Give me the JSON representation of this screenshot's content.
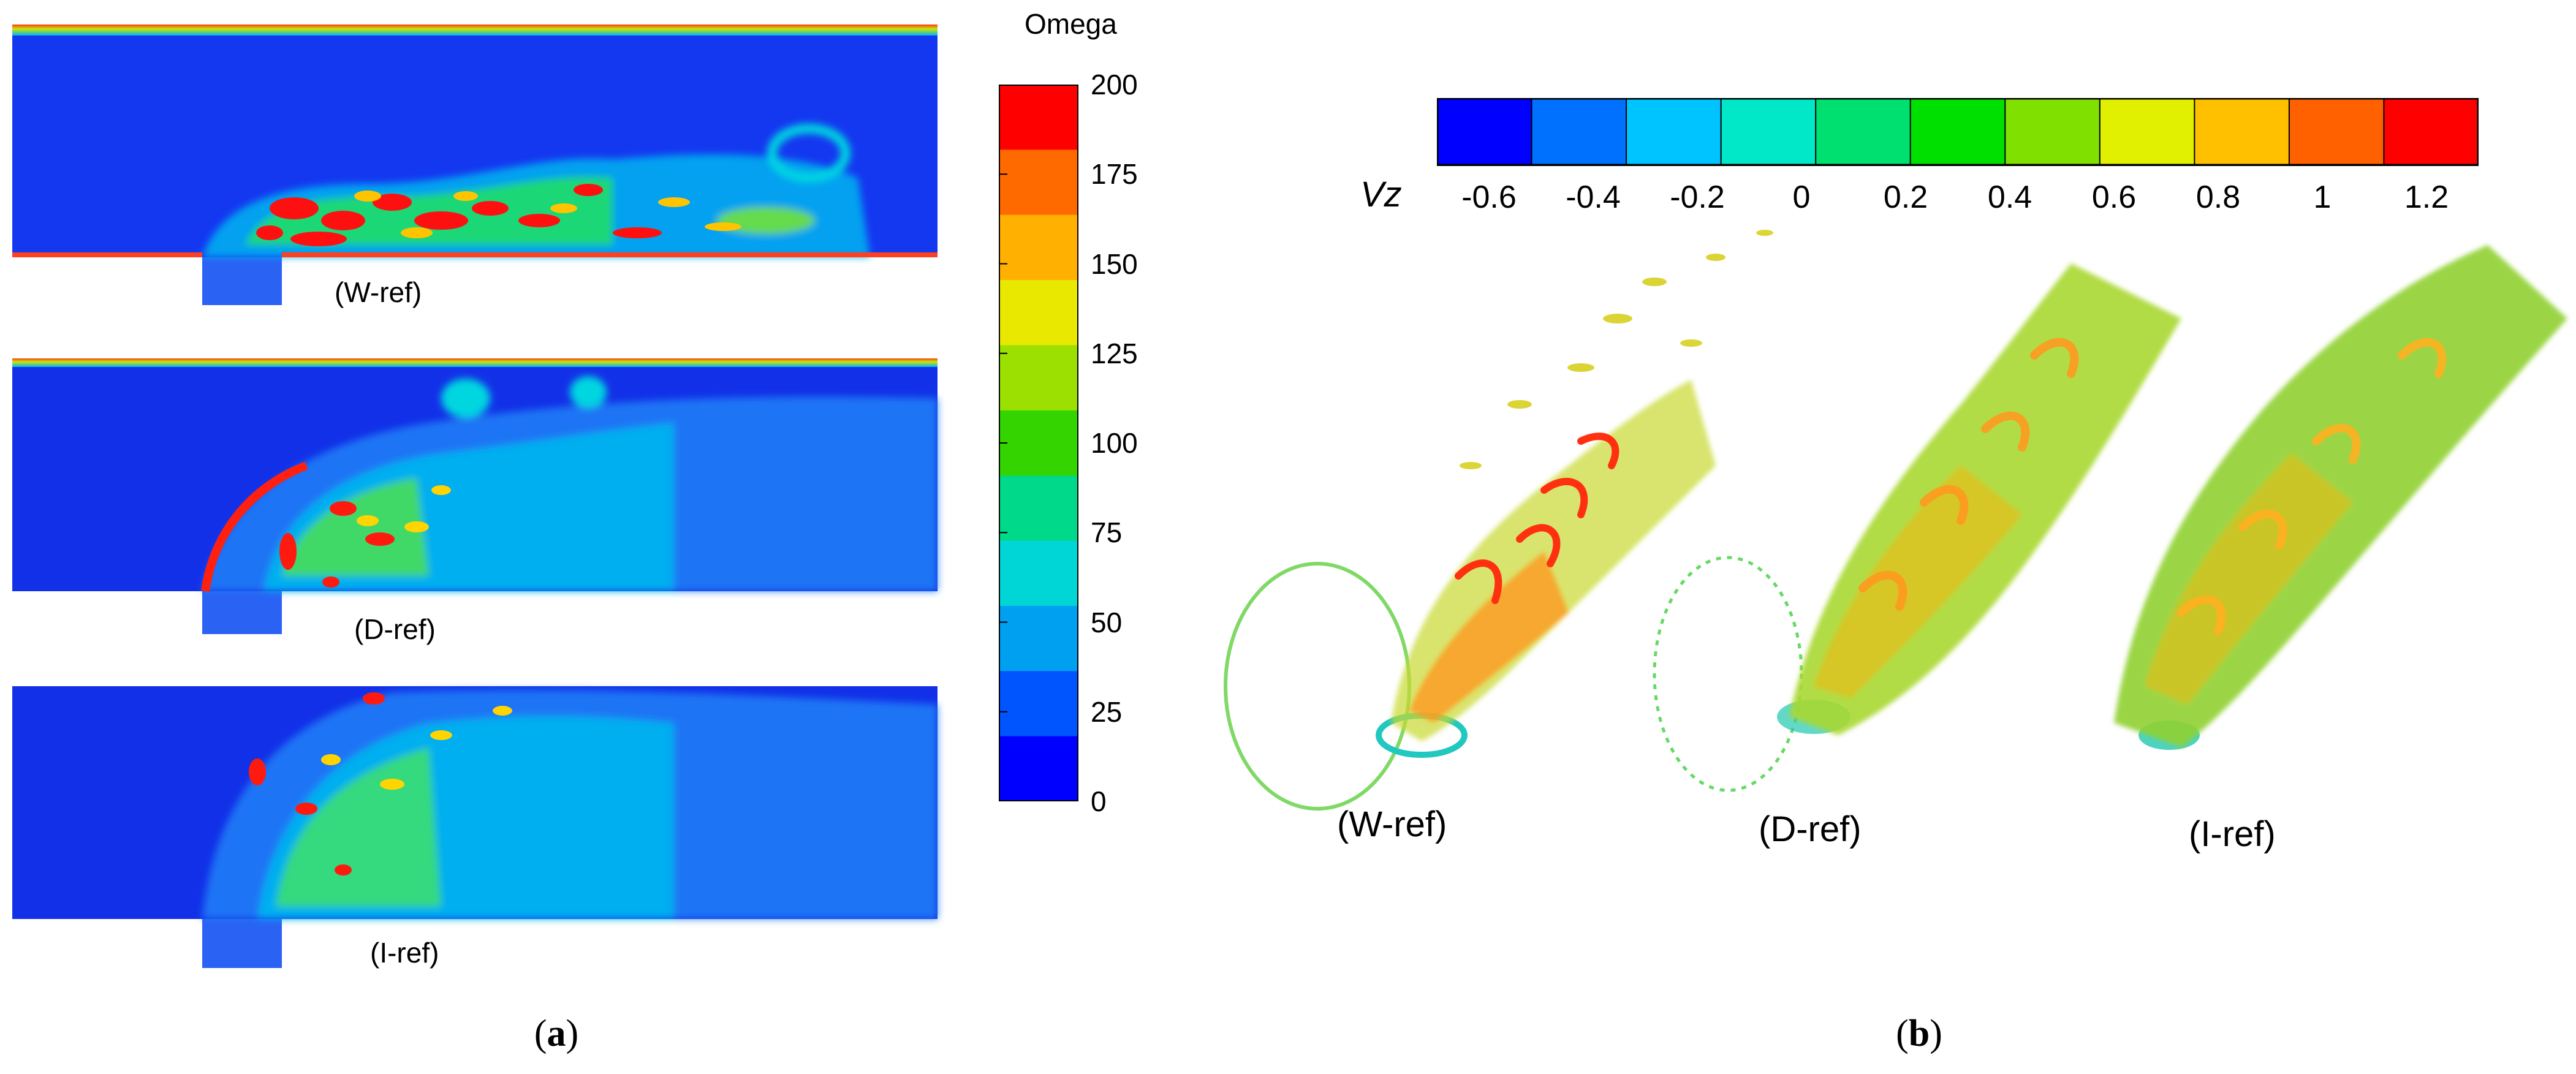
{
  "panel_a": {
    "subfigure_label": "a",
    "colorbar": {
      "title": "Omega",
      "ticks": [
        "200",
        "175",
        "150",
        "125",
        "100",
        "75",
        "50",
        "25",
        "0"
      ],
      "range": [
        0,
        200
      ],
      "colors": [
        "#ff0000",
        "#ff6a00",
        "#ffb000",
        "#e8e800",
        "#9be000",
        "#33d400",
        "#00d88a",
        "#00d6d6",
        "#00a0f0",
        "#0055ff",
        "#0000ff"
      ]
    },
    "cases": [
      "(W-ref)",
      "(D-ref)",
      "(I-ref)"
    ]
  },
  "panel_b": {
    "subfigure_label": "b",
    "colorbar": {
      "title": "Vz",
      "ticks": [
        "-0.6",
        "-0.4",
        "-0.2",
        "0",
        "0.2",
        "0.4",
        "0.6",
        "0.8",
        "1",
        "1.2"
      ],
      "range": [
        -0.7,
        1.3
      ],
      "colors": [
        "#0000ff",
        "#0070ff",
        "#00c4ff",
        "#00e8c8",
        "#00e070",
        "#00e000",
        "#80e000",
        "#e0f000",
        "#ffc000",
        "#ff6000",
        "#ff0000"
      ]
    },
    "cases": [
      "(W-ref)",
      "(D-ref)",
      "(I-ref)"
    ]
  }
}
